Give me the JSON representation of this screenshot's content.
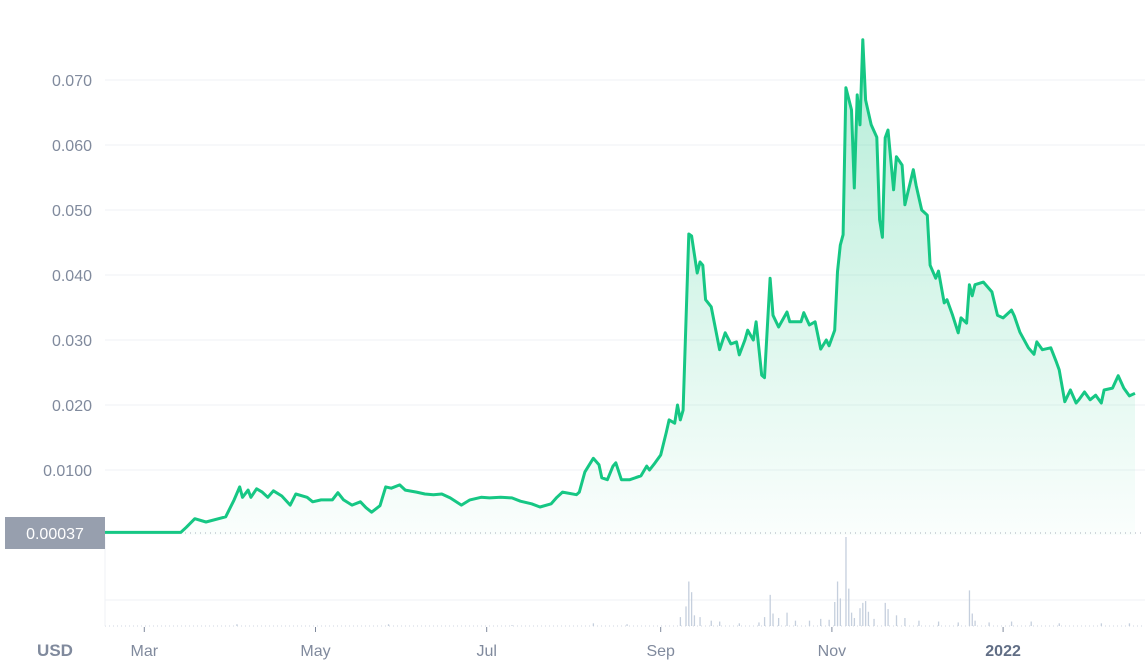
{
  "chart_data": {
    "type": "area",
    "currency_label": "USD",
    "current_price_label": "0.00037",
    "colors": {
      "line": "#16c784",
      "volume": "#c5cfdd",
      "grid": "#eff2f5",
      "axis_text": "#808a9d",
      "price_tag": "#979fae"
    },
    "y_ticks": [
      "0.0100",
      "0.020",
      "0.030",
      "0.040",
      "0.050",
      "0.060",
      "0.070"
    ],
    "y_tick_values": [
      0.01,
      0.02,
      0.03,
      0.04,
      0.05,
      0.06,
      0.07
    ],
    "x_ticks": [
      {
        "label": "Mar",
        "date": "2021-03-01"
      },
      {
        "label": "May",
        "date": "2021-05-01"
      },
      {
        "label": "Jul",
        "date": "2021-07-01"
      },
      {
        "label": "Sep",
        "date": "2021-09-01"
      },
      {
        "label": "Nov",
        "date": "2021-11-01"
      },
      {
        "label": "2022",
        "date": "2022-01-01",
        "bold": true
      }
    ],
    "xlim": [
      "2021-02-15",
      "2022-02-17"
    ],
    "ylim": [
      0,
      0.0823
    ],
    "grid": true,
    "price": [
      [
        "2021-02-15",
        0.0004
      ],
      [
        "2021-03-14",
        0.0004
      ],
      [
        "2021-03-16",
        0.0012
      ],
      [
        "2021-03-19",
        0.0025
      ],
      [
        "2021-03-23",
        0.002
      ],
      [
        "2021-03-30",
        0.0028
      ],
      [
        "2021-04-02",
        0.0054
      ],
      [
        "2021-04-04",
        0.0074
      ],
      [
        "2021-04-05",
        0.0058
      ],
      [
        "2021-04-07",
        0.0069
      ],
      [
        "2021-04-08",
        0.0058
      ],
      [
        "2021-04-10",
        0.0071
      ],
      [
        "2021-04-12",
        0.0066
      ],
      [
        "2021-04-14",
        0.0058
      ],
      [
        "2021-04-16",
        0.0068
      ],
      [
        "2021-04-19",
        0.006
      ],
      [
        "2021-04-22",
        0.0046
      ],
      [
        "2021-04-24",
        0.0063
      ],
      [
        "2021-04-28",
        0.0058
      ],
      [
        "2021-04-30",
        0.0051
      ],
      [
        "2021-05-03",
        0.0054
      ],
      [
        "2021-05-07",
        0.0054
      ],
      [
        "2021-05-09",
        0.0065
      ],
      [
        "2021-05-11",
        0.0054
      ],
      [
        "2021-05-14",
        0.0046
      ],
      [
        "2021-05-17",
        0.0051
      ],
      [
        "2021-05-19",
        0.0042
      ],
      [
        "2021-05-21",
        0.0035
      ],
      [
        "2021-05-24",
        0.0045
      ],
      [
        "2021-05-26",
        0.0074
      ],
      [
        "2021-05-28",
        0.0072
      ],
      [
        "2021-05-31",
        0.0077
      ],
      [
        "2021-06-02",
        0.0069
      ],
      [
        "2021-06-06",
        0.0066
      ],
      [
        "2021-06-09",
        0.0063
      ],
      [
        "2021-06-12",
        0.0062
      ],
      [
        "2021-06-15",
        0.0063
      ],
      [
        "2021-06-18",
        0.0057
      ],
      [
        "2021-06-22",
        0.0046
      ],
      [
        "2021-06-25",
        0.0054
      ],
      [
        "2021-06-29",
        0.0058
      ],
      [
        "2021-07-02",
        0.0057
      ],
      [
        "2021-07-06",
        0.0058
      ],
      [
        "2021-07-10",
        0.0057
      ],
      [
        "2021-07-13",
        0.0052
      ],
      [
        "2021-07-17",
        0.0048
      ],
      [
        "2021-07-20",
        0.0043
      ],
      [
        "2021-07-24",
        0.0048
      ],
      [
        "2021-07-26",
        0.0058
      ],
      [
        "2021-07-28",
        0.0066
      ],
      [
        "2021-08-02",
        0.0062
      ],
      [
        "2021-08-03",
        0.0066
      ],
      [
        "2021-08-05",
        0.0097
      ],
      [
        "2021-08-08",
        0.0118
      ],
      [
        "2021-08-10",
        0.0108
      ],
      [
        "2021-08-11",
        0.0088
      ],
      [
        "2021-08-13",
        0.0085
      ],
      [
        "2021-08-15",
        0.0106
      ],
      [
        "2021-08-16",
        0.0111
      ],
      [
        "2021-08-18",
        0.0085
      ],
      [
        "2021-08-21",
        0.0085
      ],
      [
        "2021-08-25",
        0.0091
      ],
      [
        "2021-08-27",
        0.0106
      ],
      [
        "2021-08-28",
        0.01
      ],
      [
        "2021-08-30",
        0.0111
      ],
      [
        "2021-09-01",
        0.0123
      ],
      [
        "2021-09-03",
        0.0158
      ],
      [
        "2021-09-04",
        0.0177
      ],
      [
        "2021-09-06",
        0.0172
      ],
      [
        "2021-09-07",
        0.02
      ],
      [
        "2021-09-08",
        0.0177
      ],
      [
        "2021-09-09",
        0.0192
      ],
      [
        "2021-09-11",
        0.0463
      ],
      [
        "2021-09-12",
        0.046
      ],
      [
        "2021-09-14",
        0.0403
      ],
      [
        "2021-09-15",
        0.042
      ],
      [
        "2021-09-16",
        0.0415
      ],
      [
        "2021-09-17",
        0.0362
      ],
      [
        "2021-09-19",
        0.0351
      ],
      [
        "2021-09-22",
        0.0285
      ],
      [
        "2021-09-24",
        0.0311
      ],
      [
        "2021-09-26",
        0.0294
      ],
      [
        "2021-09-28",
        0.0297
      ],
      [
        "2021-09-29",
        0.0277
      ],
      [
        "2021-10-01",
        0.03
      ],
      [
        "2021-10-02",
        0.0315
      ],
      [
        "2021-10-04",
        0.03
      ],
      [
        "2021-10-05",
        0.0328
      ],
      [
        "2021-10-07",
        0.0246
      ],
      [
        "2021-10-08",
        0.0242
      ],
      [
        "2021-10-10",
        0.0395
      ],
      [
        "2021-10-11",
        0.0338
      ],
      [
        "2021-10-13",
        0.032
      ],
      [
        "2021-10-16",
        0.0343
      ],
      [
        "2021-10-17",
        0.0328
      ],
      [
        "2021-10-21",
        0.0328
      ],
      [
        "2021-10-22",
        0.0342
      ],
      [
        "2021-10-24",
        0.0323
      ],
      [
        "2021-10-26",
        0.0328
      ],
      [
        "2021-10-28",
        0.0286
      ],
      [
        "2021-10-30",
        0.03
      ],
      [
        "2021-10-31",
        0.0291
      ],
      [
        "2021-11-02",
        0.0315
      ],
      [
        "2021-11-03",
        0.0405
      ],
      [
        "2021-11-04",
        0.0446
      ],
      [
        "2021-11-05",
        0.0462
      ],
      [
        "2021-11-06",
        0.0688
      ],
      [
        "2021-11-08",
        0.0654
      ],
      [
        "2021-11-09",
        0.0534
      ],
      [
        "2021-11-10",
        0.0677
      ],
      [
        "2021-11-11",
        0.0631
      ],
      [
        "2021-11-12",
        0.0762
      ],
      [
        "2021-11-13",
        0.0669
      ],
      [
        "2021-11-15",
        0.0631
      ],
      [
        "2021-11-17",
        0.0612
      ],
      [
        "2021-11-18",
        0.0485
      ],
      [
        "2021-11-19",
        0.0458
      ],
      [
        "2021-11-20",
        0.0611
      ],
      [
        "2021-11-21",
        0.0623
      ],
      [
        "2021-11-23",
        0.0531
      ],
      [
        "2021-11-24",
        0.0582
      ],
      [
        "2021-11-26",
        0.0569
      ],
      [
        "2021-11-27",
        0.0508
      ],
      [
        "2021-11-30",
        0.0562
      ],
      [
        "2021-12-01",
        0.0538
      ],
      [
        "2021-12-03",
        0.05
      ],
      [
        "2021-12-05",
        0.0492
      ],
      [
        "2021-12-06",
        0.0415
      ],
      [
        "2021-12-08",
        0.0395
      ],
      [
        "2021-12-09",
        0.0406
      ],
      [
        "2021-12-11",
        0.0357
      ],
      [
        "2021-12-12",
        0.0362
      ],
      [
        "2021-12-14",
        0.0338
      ],
      [
        "2021-12-16",
        0.0311
      ],
      [
        "2021-12-17",
        0.0334
      ],
      [
        "2021-12-19",
        0.0326
      ],
      [
        "2021-12-20",
        0.0385
      ],
      [
        "2021-12-21",
        0.0368
      ],
      [
        "2021-12-22",
        0.0385
      ],
      [
        "2021-12-25",
        0.0389
      ],
      [
        "2021-12-28",
        0.0374
      ],
      [
        "2021-12-30",
        0.0338
      ],
      [
        "2022-01-01",
        0.0334
      ],
      [
        "2022-01-04",
        0.0346
      ],
      [
        "2022-01-05",
        0.0337
      ],
      [
        "2022-01-07",
        0.0312
      ],
      [
        "2022-01-10",
        0.0288
      ],
      [
        "2022-01-12",
        0.0278
      ],
      [
        "2022-01-13",
        0.0297
      ],
      [
        "2022-01-15",
        0.0285
      ],
      [
        "2022-01-18",
        0.0288
      ],
      [
        "2022-01-20",
        0.0266
      ],
      [
        "2022-01-21",
        0.0254
      ],
      [
        "2022-01-23",
        0.0205
      ],
      [
        "2022-01-25",
        0.0223
      ],
      [
        "2022-01-27",
        0.0203
      ],
      [
        "2022-01-28",
        0.0208
      ],
      [
        "2022-01-30",
        0.022
      ],
      [
        "2022-02-01",
        0.0208
      ],
      [
        "2022-02-03",
        0.0215
      ],
      [
        "2022-02-05",
        0.0203
      ],
      [
        "2022-02-06",
        0.0223
      ],
      [
        "2022-02-09",
        0.0226
      ],
      [
        "2022-02-11",
        0.0245
      ],
      [
        "2022-02-13",
        0.0226
      ],
      [
        "2022-02-15",
        0.0214
      ],
      [
        "2022-02-17",
        0.0218
      ]
    ],
    "volume_relative": [
      [
        "2021-04-03",
        0.02
      ],
      [
        "2021-05-27",
        0.02
      ],
      [
        "2021-07-10",
        0.01
      ],
      [
        "2021-08-08",
        0.03
      ],
      [
        "2021-08-20",
        0.02
      ],
      [
        "2021-09-08",
        0.1
      ],
      [
        "2021-09-10",
        0.22
      ],
      [
        "2021-09-11",
        0.5
      ],
      [
        "2021-09-12",
        0.38
      ],
      [
        "2021-09-13",
        0.12
      ],
      [
        "2021-09-15",
        0.1
      ],
      [
        "2021-09-19",
        0.06
      ],
      [
        "2021-09-22",
        0.05
      ],
      [
        "2021-09-29",
        0.03
      ],
      [
        "2021-10-06",
        0.04
      ],
      [
        "2021-10-08",
        0.1
      ],
      [
        "2021-10-10",
        0.35
      ],
      [
        "2021-10-11",
        0.14
      ],
      [
        "2021-10-13",
        0.09
      ],
      [
        "2021-10-16",
        0.15
      ],
      [
        "2021-10-19",
        0.06
      ],
      [
        "2021-10-24",
        0.06
      ],
      [
        "2021-10-28",
        0.08
      ],
      [
        "2021-10-31",
        0.07
      ],
      [
        "2021-11-02",
        0.27
      ],
      [
        "2021-11-03",
        0.5
      ],
      [
        "2021-11-04",
        0.31
      ],
      [
        "2021-11-06",
        1.0
      ],
      [
        "2021-11-07",
        0.42
      ],
      [
        "2021-11-08",
        0.15
      ],
      [
        "2021-11-09",
        0.09
      ],
      [
        "2021-11-11",
        0.2
      ],
      [
        "2021-11-12",
        0.26
      ],
      [
        "2021-11-13",
        0.28
      ],
      [
        "2021-11-14",
        0.16
      ],
      [
        "2021-11-16",
        0.08
      ],
      [
        "2021-11-20",
        0.26
      ],
      [
        "2021-11-21",
        0.19
      ],
      [
        "2021-11-24",
        0.12
      ],
      [
        "2021-11-27",
        0.09
      ],
      [
        "2021-12-02",
        0.06
      ],
      [
        "2021-12-09",
        0.05
      ],
      [
        "2021-12-16",
        0.04
      ],
      [
        "2021-12-20",
        0.4
      ],
      [
        "2021-12-21",
        0.14
      ],
      [
        "2021-12-22",
        0.06
      ],
      [
        "2021-12-27",
        0.04
      ],
      [
        "2022-01-04",
        0.05
      ],
      [
        "2022-01-11",
        0.05
      ],
      [
        "2022-01-21",
        0.03
      ],
      [
        "2022-02-05",
        0.03
      ],
      [
        "2022-02-15",
        0.03
      ]
    ]
  }
}
